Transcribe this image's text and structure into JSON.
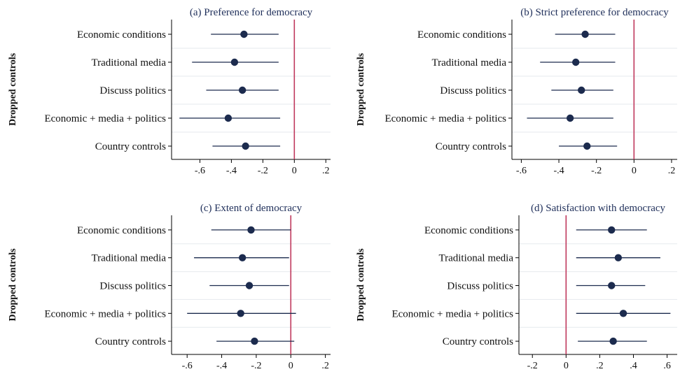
{
  "colors": {
    "marker": "#1c2b4e",
    "ci_line": "#1c2b4e",
    "zero_line": "#c0395d",
    "gridline": "#e6eaee",
    "axis": "#000000",
    "title_text": "#1f2f5a"
  },
  "chart_data": [
    {
      "type": "scatter",
      "title": "(a) Preference for democracy",
      "ylabel": "Dropped controls",
      "xlabel": "",
      "categories": [
        "Economic conditions",
        "Traditional media",
        "Discuss politics",
        "Economic + media + politics",
        "Country controls"
      ],
      "estimates": [
        -0.32,
        -0.38,
        -0.33,
        -0.42,
        -0.31
      ],
      "ci_low": [
        -0.53,
        -0.65,
        -0.56,
        -0.73,
        -0.52
      ],
      "ci_high": [
        -0.1,
        -0.1,
        -0.1,
        -0.09,
        -0.09
      ],
      "xticks": [
        -0.6,
        -0.4,
        -0.2,
        0,
        0.2
      ],
      "xtick_labels": [
        "-.6",
        "-.4",
        "-.2",
        "0",
        ".2"
      ],
      "xlim": [
        -0.78,
        0.23
      ],
      "reference_line": 0,
      "grid": true
    },
    {
      "type": "scatter",
      "title": "(b) Strict preference for democracy",
      "ylabel": "Dropped controls",
      "xlabel": "",
      "categories": [
        "Economic conditions",
        "Traditional media",
        "Discuss politics",
        "Economic + media + politics",
        "Country controls"
      ],
      "estimates": [
        -0.26,
        -0.31,
        -0.28,
        -0.34,
        -0.25
      ],
      "ci_low": [
        -0.42,
        -0.5,
        -0.44,
        -0.57,
        -0.4
      ],
      "ci_high": [
        -0.1,
        -0.1,
        -0.11,
        -0.11,
        -0.09
      ],
      "xticks": [
        -0.6,
        -0.4,
        -0.2,
        0,
        0.2
      ],
      "xtick_labels": [
        "-.6",
        "-.4",
        "-.2",
        "0",
        ".2"
      ],
      "xlim": [
        -0.65,
        0.23
      ],
      "reference_line": 0,
      "grid": true
    },
    {
      "type": "scatter",
      "title": "(c) Extent of democracy",
      "ylabel": "Dropped controls",
      "xlabel": "",
      "categories": [
        "Economic conditions",
        "Traditional media",
        "Discuss politics",
        "Economic + media + politics",
        "Country controls"
      ],
      "estimates": [
        -0.23,
        -0.28,
        -0.24,
        -0.29,
        -0.21
      ],
      "ci_low": [
        -0.46,
        -0.56,
        -0.47,
        -0.6,
        -0.43
      ],
      "ci_high": [
        0.0,
        -0.01,
        -0.01,
        0.03,
        0.02
      ],
      "xticks": [
        -0.6,
        -0.4,
        -0.2,
        0,
        0.2
      ],
      "xtick_labels": [
        "-.6",
        "-.4",
        "-.2",
        "0",
        ".2"
      ],
      "xlim": [
        -0.69,
        0.23
      ],
      "reference_line": 0,
      "grid": true
    },
    {
      "type": "scatter",
      "title": "(d) Satisfaction with democracy",
      "ylabel": "Dropped controls",
      "xlabel": "",
      "categories": [
        "Economic conditions",
        "Traditional media",
        "Discuss politics",
        "Economic + media + politics",
        "Country controls"
      ],
      "estimates": [
        0.27,
        0.31,
        0.27,
        0.34,
        0.28
      ],
      "ci_low": [
        0.06,
        0.06,
        0.06,
        0.06,
        0.07
      ],
      "ci_high": [
        0.48,
        0.56,
        0.47,
        0.62,
        0.48
      ],
      "xticks": [
        -0.2,
        0,
        0.2,
        0.4,
        0.6
      ],
      "xtick_labels": [
        "-.2",
        "0",
        ".2",
        ".4",
        ".6"
      ],
      "xlim": [
        -0.28,
        0.66
      ],
      "reference_line": 0,
      "grid": true
    }
  ]
}
